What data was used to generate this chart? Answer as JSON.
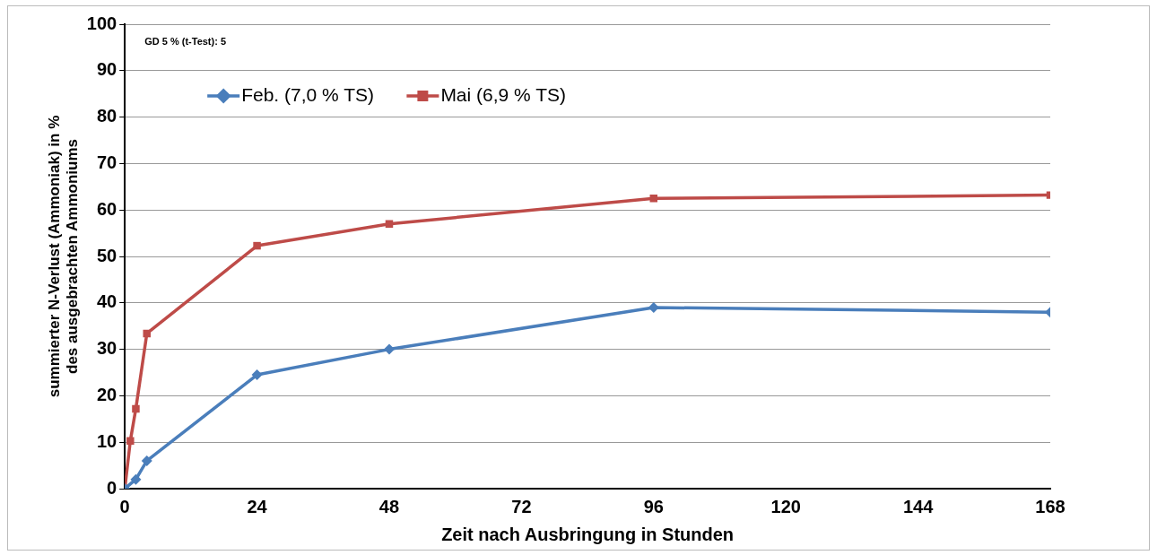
{
  "chart_data": {
    "type": "line",
    "xlabel": "Zeit nach Ausbringung in Stunden",
    "ylabel": "summierter N-Verlust (Ammoniak) in %\ndes ausgebrachten Ammoniums",
    "annotations": [
      "GD 5 % (t-Test): 5"
    ],
    "series": [
      {
        "name": "Feb. (7,0 % TS)",
        "color": "#4a7ebb",
        "marker": "diamond",
        "x": [
          0,
          2,
          4,
          24,
          48,
          96,
          168
        ],
        "values": [
          0,
          2,
          6,
          24.5,
          30,
          39,
          38
        ]
      },
      {
        "name": "Mai (6,9 % TS)",
        "color": "#be4b48",
        "marker": "square",
        "x": [
          0,
          1,
          2,
          4,
          24,
          48,
          96,
          168
        ],
        "values": [
          0,
          10.3,
          17.2,
          33.4,
          52.3,
          57,
          62.5,
          63.2
        ]
      }
    ],
    "xlim": [
      0,
      168
    ],
    "xticks": [
      0,
      24,
      48,
      72,
      96,
      120,
      144,
      168
    ],
    "ylim": [
      0,
      100
    ],
    "yticks": [
      0,
      10,
      20,
      30,
      40,
      50,
      60,
      70,
      80,
      90,
      100
    ],
    "grid": "y",
    "legend": "top left",
    "line_style": "solid"
  }
}
